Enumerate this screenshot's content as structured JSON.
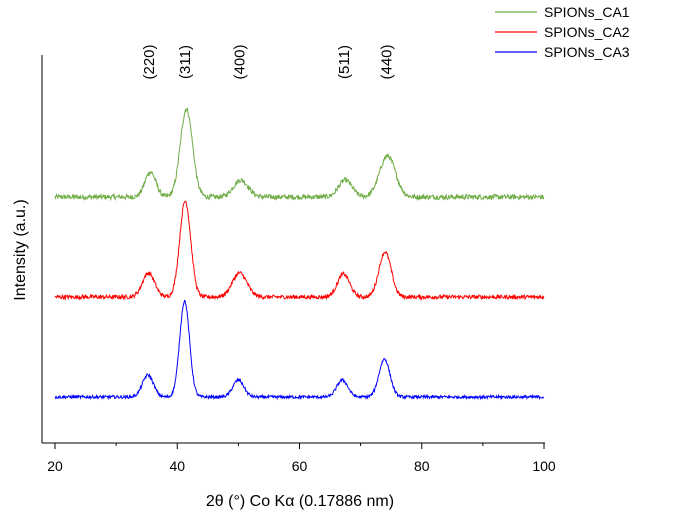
{
  "chart_data": {
    "type": "line",
    "title": "",
    "xlabel": "2θ (°) Co Kα (0.17886 nm)",
    "ylabel": "Intensity (a.u.)",
    "xlim": [
      20,
      100
    ],
    "x_ticks": [
      20,
      40,
      60,
      80,
      100
    ],
    "y_ticks_shown": false,
    "grid": false,
    "legend_position": "top-right",
    "peak_labels": [
      {
        "text": "(220)",
        "x": 35.4
      },
      {
        "text": "(311)",
        "x": 41.3
      },
      {
        "text": "(400)",
        "x": 50.2
      },
      {
        "text": "(511)",
        "x": 67.3
      },
      {
        "text": "(440)",
        "x": 74.2
      }
    ],
    "series": [
      {
        "name": "SPIONs_CA1",
        "color": "#70ad47",
        "offset": 2,
        "baseline": 0.0,
        "noise": 0.05,
        "peaks": [
          {
            "x": 35.6,
            "height": 0.25,
            "width": 0.9
          },
          {
            "x": 41.5,
            "height": 0.88,
            "width": 1.0
          },
          {
            "x": 50.4,
            "height": 0.17,
            "width": 1.2
          },
          {
            "x": 67.5,
            "height": 0.17,
            "width": 1.1
          },
          {
            "x": 74.4,
            "height": 0.41,
            "width": 1.3
          }
        ]
      },
      {
        "name": "SPIONs_CA2",
        "color": "#ff0000",
        "offset": 1,
        "baseline": 0.0,
        "noise": 0.04,
        "peaks": [
          {
            "x": 35.3,
            "height": 0.24,
            "width": 1.0
          },
          {
            "x": 41.3,
            "height": 0.96,
            "width": 0.9
          },
          {
            "x": 50.2,
            "height": 0.24,
            "width": 1.2
          },
          {
            "x": 67.2,
            "height": 0.23,
            "width": 1.0
          },
          {
            "x": 74.0,
            "height": 0.45,
            "width": 1.0
          }
        ]
      },
      {
        "name": "SPIONs_CA3",
        "color": "#0000ff",
        "offset": 0,
        "baseline": 0.0,
        "noise": 0.03,
        "peaks": [
          {
            "x": 35.2,
            "height": 0.22,
            "width": 0.9
          },
          {
            "x": 41.2,
            "height": 0.96,
            "width": 0.8
          },
          {
            "x": 50.0,
            "height": 0.17,
            "width": 0.9
          },
          {
            "x": 67.0,
            "height": 0.17,
            "width": 0.9
          },
          {
            "x": 73.9,
            "height": 0.38,
            "width": 0.9
          }
        ]
      }
    ]
  }
}
